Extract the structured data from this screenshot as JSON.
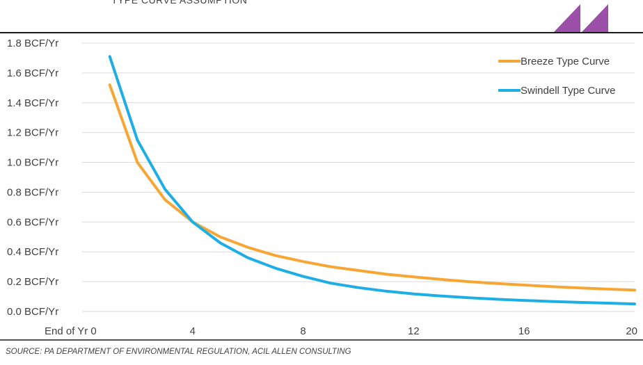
{
  "header": {
    "title": "TYPE CURVE ASSUMPTION"
  },
  "source_note": "SOURCE: PA DEPARTMENT OF ENVIRONMENTAL REGULATION, ACIL ALLEN CONSULTING",
  "colors": {
    "breeze": "#F7A634",
    "swindell": "#1EAEE6",
    "logo": "#9B4FA8",
    "grid": "#D9D9D9",
    "rule": "#1a1a1a"
  },
  "chart_data": {
    "type": "line",
    "x": [
      1,
      2,
      3,
      4,
      5,
      6,
      7,
      8,
      9,
      10,
      11,
      12,
      13,
      14,
      15,
      16,
      17,
      18,
      19,
      20
    ],
    "xlim": [
      0,
      20
    ],
    "ylim": [
      0,
      1.8
    ],
    "y_ticks": [
      {
        "value": 0.0,
        "label": "0.0 BCF/Yr"
      },
      {
        "value": 0.2,
        "label": "0.2 BCF/Yr"
      },
      {
        "value": 0.4,
        "label": "0.4 BCF/Yr"
      },
      {
        "value": 0.6,
        "label": "0.6 BCF/Yr"
      },
      {
        "value": 0.8,
        "label": "0.8 BCF/Yr"
      },
      {
        "value": 1.0,
        "label": "1.0 BCF/Yr"
      },
      {
        "value": 1.2,
        "label": "1.2 BCF/Yr"
      },
      {
        "value": 1.4,
        "label": "1.4 BCF/Yr"
      },
      {
        "value": 1.6,
        "label": "1.6 BCF/Yr"
      },
      {
        "value": 1.8,
        "label": "1.8 BCF/Yr"
      }
    ],
    "x_ticks": [
      {
        "value": 0,
        "label": "End of Yr 0"
      },
      {
        "value": 4,
        "label": "4"
      },
      {
        "value": 8,
        "label": "8"
      },
      {
        "value": 12,
        "label": "12"
      },
      {
        "value": 16,
        "label": "16"
      },
      {
        "value": 20,
        "label": "20"
      }
    ],
    "grid": true,
    "legend_position": "top-right",
    "series": [
      {
        "name": "Breeze Type Curve",
        "color": "#F7A634",
        "values": [
          1.52,
          1.0,
          0.75,
          0.6,
          0.5,
          0.43,
          0.375,
          0.335,
          0.3,
          0.275,
          0.25,
          0.232,
          0.215,
          0.2,
          0.188,
          0.177,
          0.167,
          0.158,
          0.15,
          0.143
        ]
      },
      {
        "name": "Swindell Type Curve",
        "color": "#1EAEE6",
        "values": [
          1.71,
          1.15,
          0.82,
          0.6,
          0.46,
          0.36,
          0.29,
          0.235,
          0.19,
          0.16,
          0.136,
          0.118,
          0.104,
          0.092,
          0.082,
          0.074,
          0.067,
          0.061,
          0.056,
          0.051
        ]
      }
    ]
  }
}
